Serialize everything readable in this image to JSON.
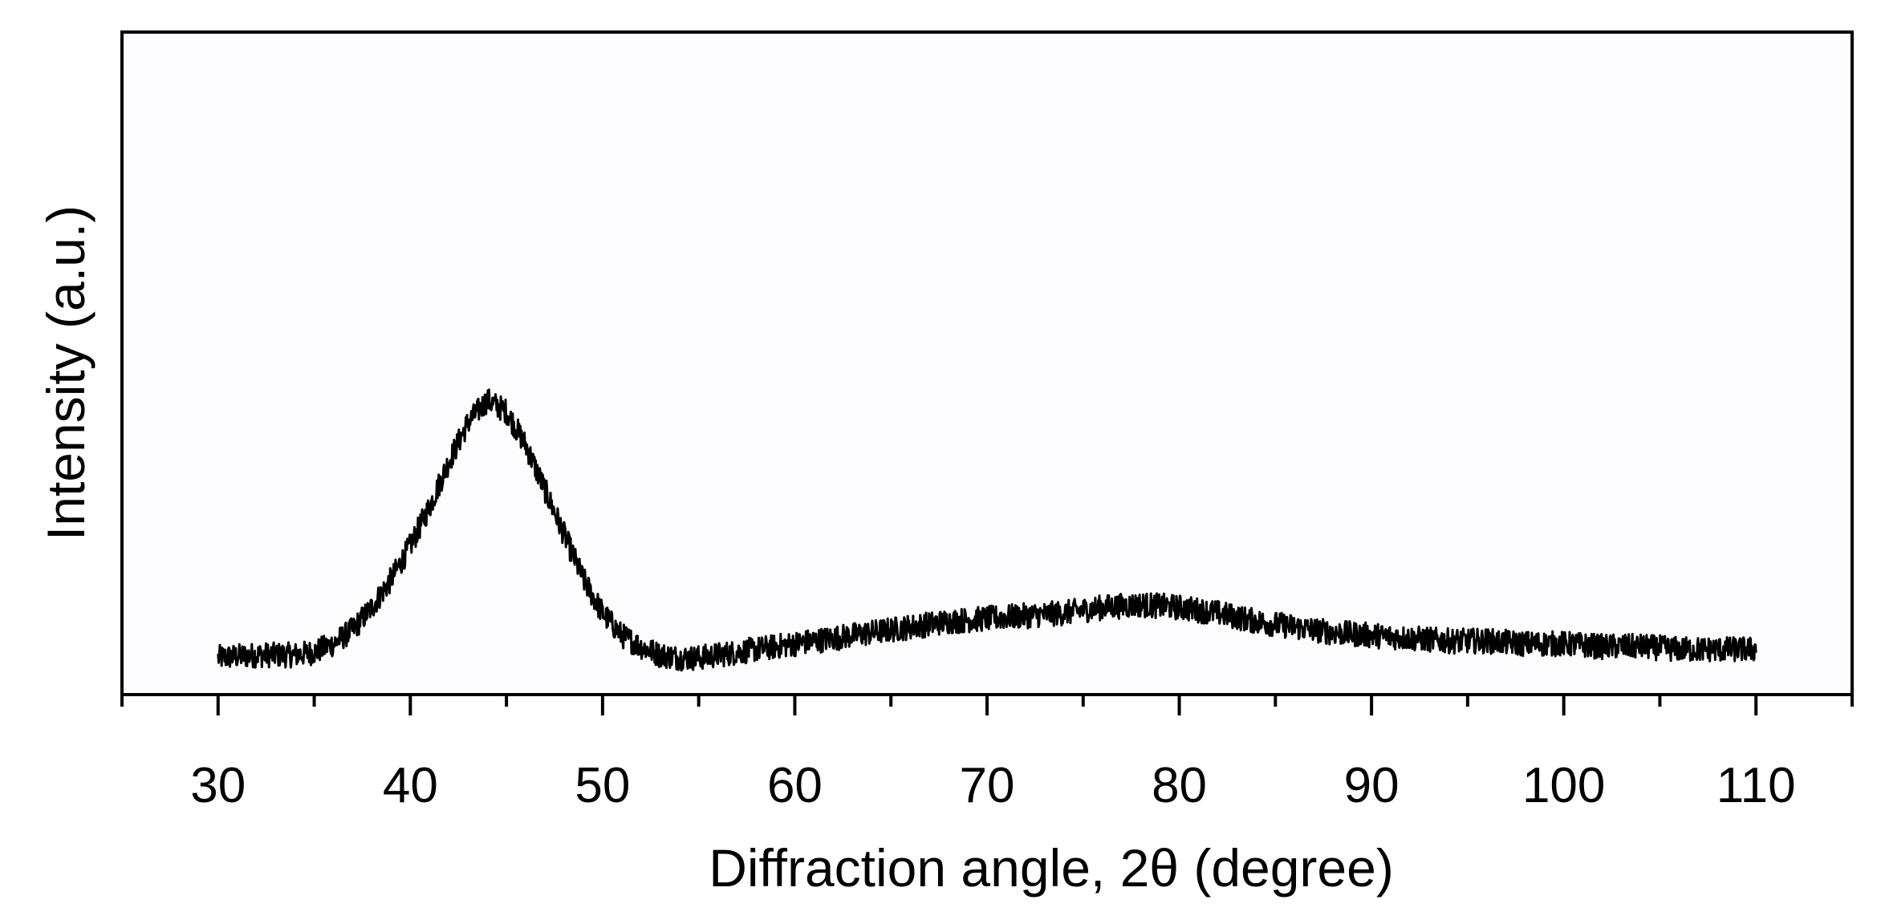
{
  "chart_data": {
    "type": "line",
    "title": "",
    "xlabel": "Diffraction angle, 2θ (degree)",
    "ylabel": "Intensity (a.u.)",
    "xlim": [
      25,
      115
    ],
    "ylim": [
      0,
      1
    ],
    "x_ticks": [
      30,
      40,
      50,
      60,
      70,
      80,
      90,
      100,
      110
    ],
    "x_tick_labels": [
      "30",
      "40",
      "50",
      "60",
      "70",
      "80",
      "90",
      "100",
      "110"
    ],
    "y_ticks_shown": false,
    "grid": false,
    "legend": "none",
    "line_color": "#000000",
    "series": [
      {
        "x": [
          30,
          32,
          34,
          35,
          36,
          37,
          38,
          39,
          40,
          41,
          42,
          43,
          44,
          45,
          46,
          47,
          48,
          49,
          50,
          51,
          52,
          53,
          54,
          55,
          56,
          58,
          60,
          62,
          64,
          66,
          68,
          70,
          72,
          74,
          76,
          78,
          80,
          82,
          84,
          86,
          88,
          90,
          92,
          94,
          96,
          98,
          100,
          102,
          104,
          106,
          108,
          110
        ],
        "y": [
          0.04,
          0.045,
          0.045,
          0.05,
          0.065,
          0.09,
          0.13,
          0.18,
          0.24,
          0.31,
          0.39,
          0.46,
          0.5,
          0.48,
          0.42,
          0.34,
          0.26,
          0.18,
          0.12,
          0.08,
          0.06,
          0.045,
          0.04,
          0.04,
          0.045,
          0.055,
          0.065,
          0.075,
          0.085,
          0.095,
          0.105,
          0.11,
          0.115,
          0.12,
          0.13,
          0.135,
          0.13,
          0.12,
          0.105,
          0.095,
          0.085,
          0.08,
          0.075,
          0.07,
          0.07,
          0.065,
          0.065,
          0.06,
          0.06,
          0.055,
          0.055,
          0.055
        ]
      }
    ]
  }
}
